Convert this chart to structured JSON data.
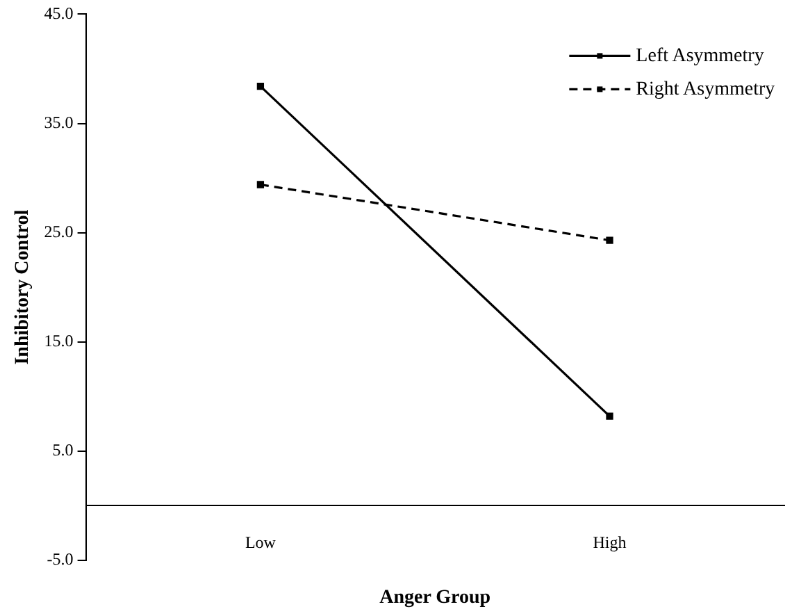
{
  "chart_data": {
    "type": "line",
    "xlabel": "Anger Group",
    "ylabel": "Inhibitory Control",
    "categories": [
      "Low",
      "High"
    ],
    "series": [
      {
        "name": "Left Asymmetry",
        "color": "#000000",
        "values": [
          38.4,
          8.2
        ],
        "line_style": "solid"
      },
      {
        "name": "Right Asymmetry",
        "color": "#000000",
        "values": [
          29.4,
          24.3
        ],
        "line_style": "dashed"
      }
    ],
    "ylim": [
      -5,
      45
    ],
    "yticks": [
      {
        "value": -5,
        "label": "-5.0"
      },
      {
        "value": 5,
        "label": "5.0"
      },
      {
        "value": 15,
        "label": "15.0"
      },
      {
        "value": 25,
        "label": "25.0"
      },
      {
        "value": 35,
        "label": "35.0"
      },
      {
        "value": 45,
        "label": "45.0"
      }
    ],
    "grid": false,
    "legend": "top right",
    "marker": "square"
  }
}
